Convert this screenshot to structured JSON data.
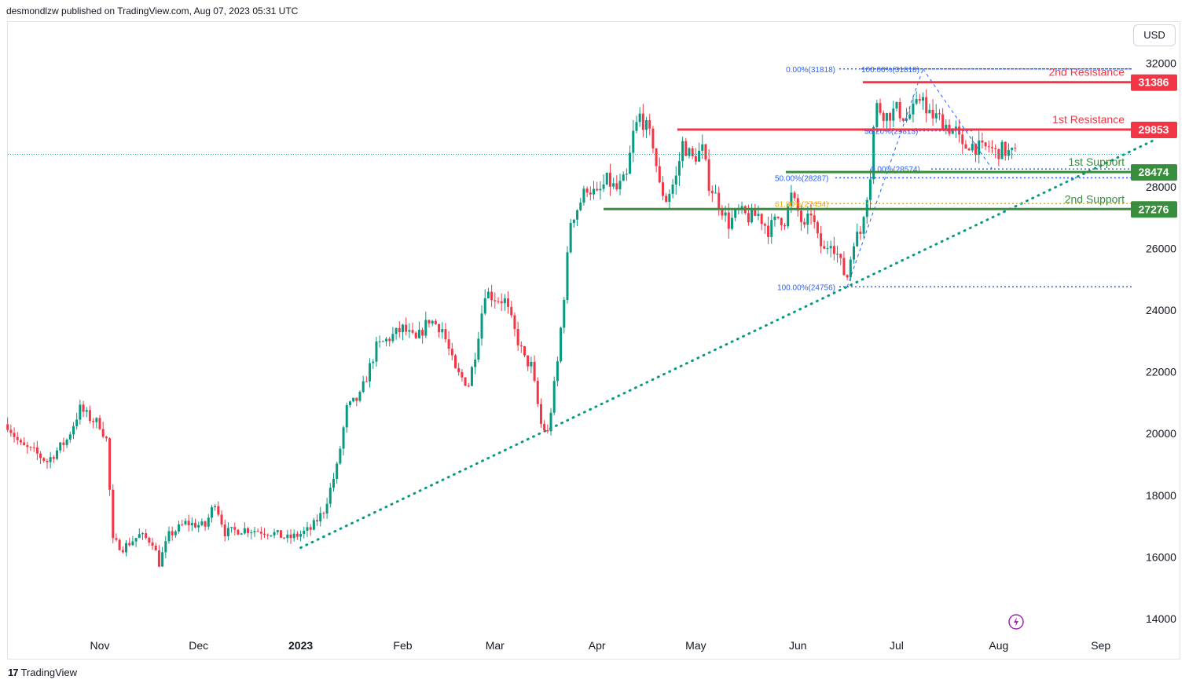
{
  "header": {
    "text": "desmondlzw published on TradingView.com, Aug 07, 2023 05:31 UTC"
  },
  "currency": "USD",
  "footer": {
    "logo": "17",
    "brand": "TradingView"
  },
  "chart_data": {
    "type": "candlestick",
    "symbol_currency": "USD",
    "ylim": [
      13500,
      33000
    ],
    "y_ticks": [
      14000,
      16000,
      18000,
      20000,
      22000,
      24000,
      26000,
      28000,
      32000
    ],
    "x_ticks": [
      {
        "label": "Nov",
        "day": 0
      },
      {
        "label": "Dec",
        "day": 30
      },
      {
        "label": "2023",
        "day": 61,
        "bold": true
      },
      {
        "label": "Feb",
        "day": 92
      },
      {
        "label": "Mar",
        "day": 120
      },
      {
        "label": "Apr",
        "day": 151
      },
      {
        "label": "May",
        "day": 181
      },
      {
        "label": "Jun",
        "day": 212
      },
      {
        "label": "Jul",
        "day": 242
      },
      {
        "label": "Aug",
        "day": 273
      },
      {
        "label": "Sep",
        "day": 304
      }
    ],
    "price_anchors": [
      [
        -28,
        20300
      ],
      [
        -24,
        19600
      ],
      [
        -20,
        19400
      ],
      [
        -16,
        19100
      ],
      [
        -10,
        19800
      ],
      [
        -6,
        20800
      ],
      [
        -3,
        20500
      ],
      [
        0,
        20300
      ],
      [
        2,
        19800
      ],
      [
        4,
        16500
      ],
      [
        7,
        16300
      ],
      [
        12,
        16700
      ],
      [
        16,
        16500
      ],
      [
        18,
        15800
      ],
      [
        21,
        16700
      ],
      [
        26,
        17100
      ],
      [
        32,
        17000
      ],
      [
        35,
        17800
      ],
      [
        38,
        16800
      ],
      [
        44,
        16900
      ],
      [
        52,
        16800
      ],
      [
        57,
        16600
      ],
      [
        60,
        16700
      ],
      [
        64,
        16900
      ],
      [
        68,
        17500
      ],
      [
        72,
        18900
      ],
      [
        75,
        20800
      ],
      [
        79,
        21200
      ],
      [
        84,
        22800
      ],
      [
        88,
        23100
      ],
      [
        92,
        23400
      ],
      [
        96,
        23000
      ],
      [
        100,
        23700
      ],
      [
        104,
        23400
      ],
      [
        108,
        22000
      ],
      [
        112,
        21600
      ],
      [
        114,
        22600
      ],
      [
        117,
        24600
      ],
      [
        120,
        24400
      ],
      [
        123,
        24300
      ],
      [
        126,
        23300
      ],
      [
        129,
        22400
      ],
      [
        131,
        22200
      ],
      [
        134,
        20300
      ],
      [
        136,
        20000
      ],
      [
        139,
        22300
      ],
      [
        141,
        24500
      ],
      [
        143,
        26900
      ],
      [
        145,
        27300
      ],
      [
        148,
        28000
      ],
      [
        151,
        27700
      ],
      [
        154,
        28200
      ],
      [
        157,
        27900
      ],
      [
        160,
        28300
      ],
      [
        162,
        29700
      ],
      [
        164,
        30300
      ],
      [
        166,
        29900
      ],
      [
        168,
        29400
      ],
      [
        170,
        28000
      ],
      [
        172,
        27600
      ],
      [
        175,
        28300
      ],
      [
        177,
        29400
      ],
      [
        180,
        28900
      ],
      [
        183,
        29200
      ],
      [
        185,
        28100
      ],
      [
        188,
        27500
      ],
      [
        191,
        26800
      ],
      [
        194,
        27200
      ],
      [
        197,
        27000
      ],
      [
        200,
        27100
      ],
      [
        203,
        26600
      ],
      [
        206,
        27000
      ],
      [
        208,
        26900
      ],
      [
        210,
        27700
      ],
      [
        212,
        27200
      ],
      [
        214,
        26600
      ],
      [
        216,
        27200
      ],
      [
        218,
        26300
      ],
      [
        220,
        25900
      ],
      [
        222,
        26300
      ],
      [
        224,
        25800
      ],
      [
        226,
        25200
      ],
      [
        227,
        25100
      ],
      [
        229,
        26300
      ],
      [
        231,
        26500
      ],
      [
        232,
        27200
      ],
      [
        234,
        28400
      ],
      [
        235,
        29900
      ],
      [
        236,
        30600
      ],
      [
        239,
        30300
      ],
      [
        242,
        30500
      ],
      [
        245,
        30200
      ],
      [
        248,
        30600
      ],
      [
        250,
        31100
      ],
      [
        251,
        30300
      ],
      [
        253,
        30300
      ],
      [
        255,
        30200
      ],
      [
        258,
        29900
      ],
      [
        260,
        29800
      ],
      [
        262,
        29200
      ],
      [
        264,
        29400
      ],
      [
        266,
        29300
      ],
      [
        268,
        29200
      ],
      [
        270,
        29300
      ],
      [
        272,
        29100
      ],
      [
        274,
        29200
      ],
      [
        276,
        29100
      ],
      [
        278,
        29050
      ]
    ],
    "horizontal_levels": [
      {
        "name": "2nd Resistance",
        "value": 31386,
        "tag": "31386",
        "color": "#f23645"
      },
      {
        "name": "1st Resistance",
        "value": 29853,
        "tag": "29853",
        "color": "#f23645"
      },
      {
        "name": "1st Support",
        "value": 28474,
        "tag": "28474",
        "color": "#388e3c"
      },
      {
        "name": "2nd Support",
        "value": 27276,
        "tag": "27276",
        "color": "#388e3c"
      }
    ],
    "fib_labels": [
      {
        "text": "0.00%(31818)",
        "value": 31818
      },
      {
        "text": "100.00%(31818)",
        "value": 31818
      },
      {
        "text": "38.20%(29813)",
        "value": 29813
      },
      {
        "text": "0.00%(28574)",
        "value": 28574
      },
      {
        "text": "50.00%(28287)",
        "value": 28287
      },
      {
        "text": "61.80%(27454)",
        "value": 27454
      },
      {
        "text": "100.00%(24756)",
        "value": 24756
      }
    ],
    "trendline": {
      "from": {
        "day": 61,
        "value": 16300
      },
      "to": {
        "day": 320,
        "value": 29500
      },
      "color": "#089981"
    },
    "last_price": 29050,
    "colors": {
      "up": "#089981",
      "down": "#f23645"
    }
  }
}
